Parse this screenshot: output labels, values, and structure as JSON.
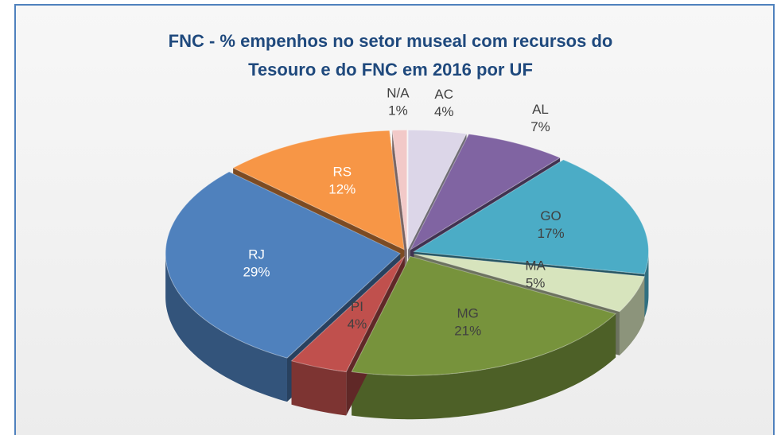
{
  "chart_data": {
    "type": "pie3d",
    "title": "FNC - % empenhos no setor museal com recursos do Tesouro e do FNC em 2016 por UF",
    "categories": [
      "AC",
      "AL",
      "GO",
      "MA",
      "MG",
      "PI",
      "RJ",
      "RS",
      "N/A"
    ],
    "values": [
      4,
      7,
      17,
      5,
      21,
      4,
      29,
      12,
      1
    ],
    "value_labels": [
      "4%",
      "7%",
      "17%",
      "5%",
      "21%",
      "4%",
      "29%",
      "12%",
      "1%"
    ],
    "colors": [
      "#dcd6e8",
      "#8064a2",
      "#4bacc6",
      "#d7e4bd",
      "#77933c",
      "#c0504d",
      "#4f81bd",
      "#f79646",
      "#f2c9c8"
    ]
  }
}
